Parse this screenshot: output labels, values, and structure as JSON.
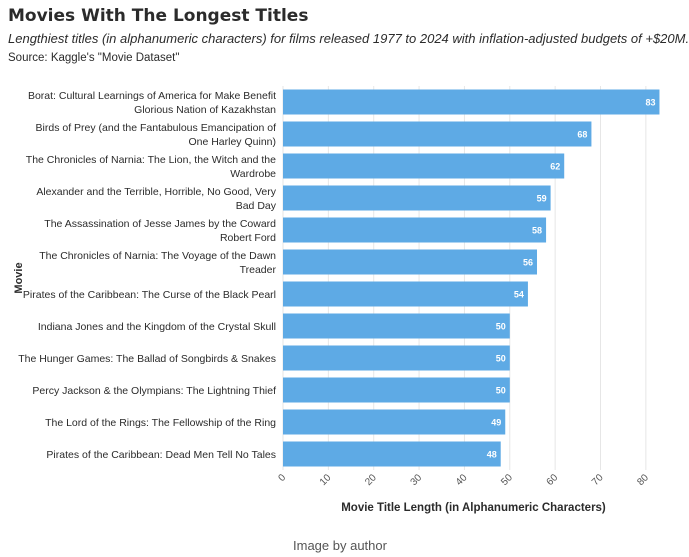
{
  "header": {
    "title": "Movies With The Longest Titles",
    "subtitle": "Lengthiest titles (in alphanumeric characters) for films released 1977 to 2024 with inflation-adjusted budgets of +$20M.",
    "source": "Source: Kaggle's \"Movie Dataset\""
  },
  "caption": "Image by author",
  "colors": {
    "bar": "#5eaae5",
    "bar_label": "#ffffff",
    "grid": "#e6e6e6",
    "text": "#2b2b2b"
  },
  "chart_data": {
    "type": "bar",
    "orientation": "horizontal",
    "xlabel": "Movie Title Length (in Alphanumeric Characters)",
    "ylabel": "Movie",
    "xlim": [
      0,
      84
    ],
    "xticks": [
      0,
      10,
      20,
      30,
      40,
      50,
      60,
      70,
      80
    ],
    "grid": true,
    "categories": [
      [
        "Borat: Cultural Learnings of America for Make Benefit",
        "Glorious Nation of Kazakhstan"
      ],
      [
        "Birds of Prey (and the Fantabulous Emancipation of",
        "One Harley Quinn)"
      ],
      [
        "The Chronicles of Narnia: The Lion, the Witch and the",
        "Wardrobe"
      ],
      [
        "Alexander and the Terrible, Horrible, No Good, Very",
        "Bad Day"
      ],
      [
        "The Assassination of Jesse James by the Coward",
        "Robert Ford"
      ],
      [
        "The Chronicles of Narnia: The Voyage of the Dawn",
        "Treader"
      ],
      [
        "Pirates of the Caribbean: The Curse of the Black Pearl"
      ],
      [
        "Indiana Jones and the Kingdom of the Crystal Skull"
      ],
      [
        "The Hunger Games: The Ballad of Songbirds & Snakes"
      ],
      [
        "Percy Jackson & the Olympians: The Lightning Thief"
      ],
      [
        "The Lord of the Rings: The Fellowship of the Ring"
      ],
      [
        "Pirates of the Caribbean: Dead Men Tell No Tales"
      ]
    ],
    "values": [
      83,
      68,
      62,
      59,
      58,
      56,
      54,
      50,
      50,
      50,
      49,
      48
    ]
  }
}
